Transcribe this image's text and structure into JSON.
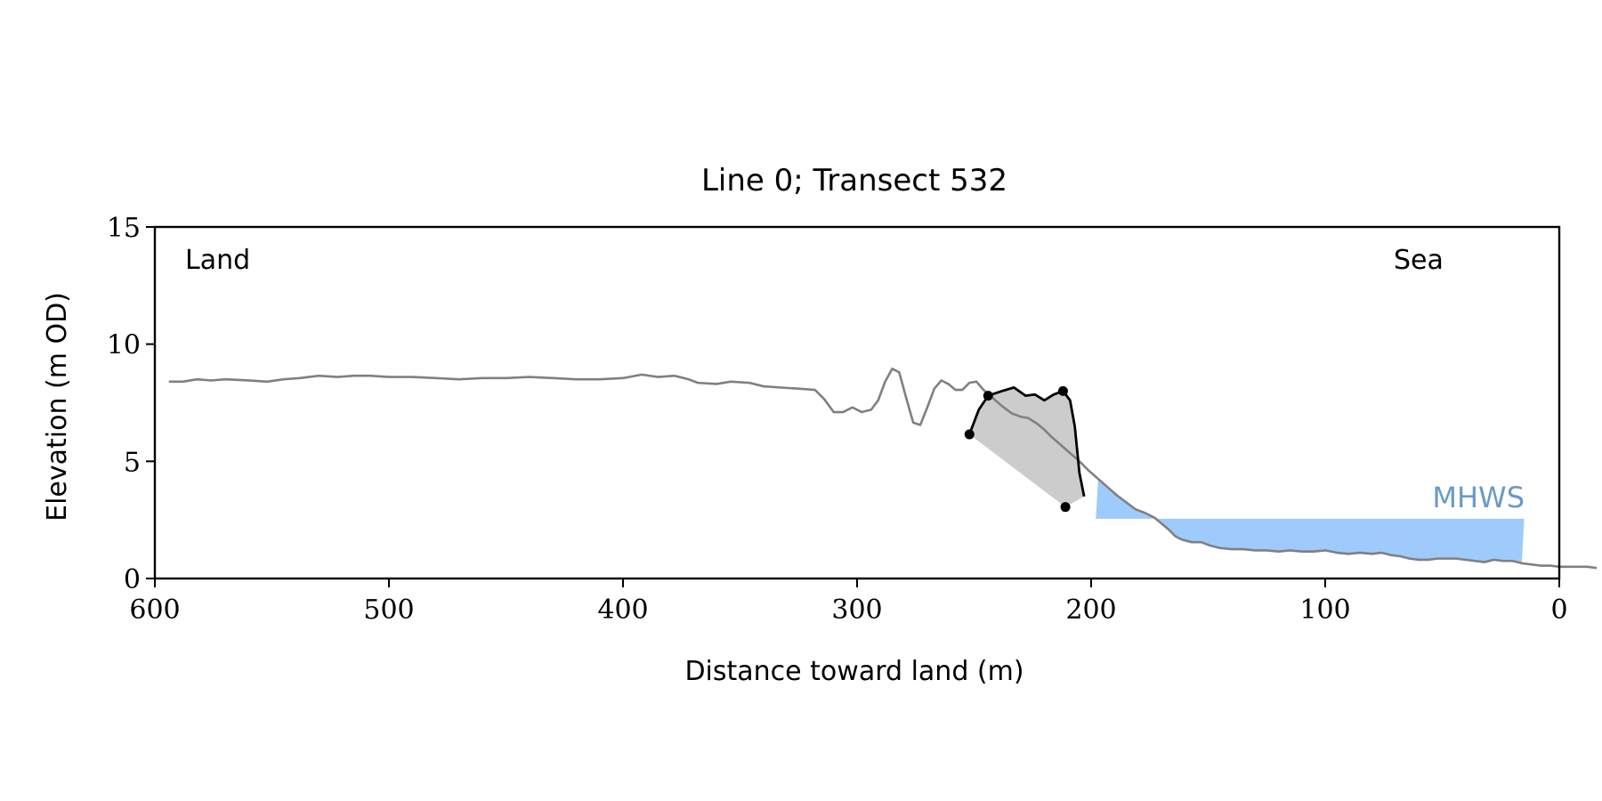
{
  "chart_data": {
    "type": "line",
    "title": "Line 0; Transect 532",
    "xlabel": "Distance toward land (m)",
    "ylabel": "Elevation (m OD)",
    "xlim": [
      600,
      0
    ],
    "ylim": [
      0,
      15
    ],
    "x_ticks": [
      600,
      500,
      400,
      300,
      200,
      100,
      0
    ],
    "y_ticks": [
      0,
      5,
      10,
      15
    ],
    "grid": false,
    "annotations": {
      "land_label": "Land",
      "sea_label": "Sea",
      "mhws_label": "MHWS"
    },
    "mhws": {
      "level": 2.55,
      "x_range": [
        198,
        15
      ]
    },
    "colors": {
      "profile": "#808080",
      "dune": "#000000",
      "dune_fill": "#cccccc",
      "water": "#9ecbfb",
      "mhws_text": "#6a9ac7"
    },
    "series": [
      {
        "values": [
          [
            594,
            8.4
          ],
          [
            588,
            8.4
          ],
          [
            582,
            8.5
          ],
          [
            576,
            8.45
          ],
          [
            570,
            8.5
          ],
          [
            560,
            8.45
          ],
          [
            552,
            8.4
          ],
          [
            545,
            8.5
          ],
          [
            538,
            8.55
          ],
          [
            530,
            8.65
          ],
          [
            522,
            8.6
          ],
          [
            515,
            8.65
          ],
          [
            508,
            8.65
          ],
          [
            500,
            8.6
          ],
          [
            490,
            8.6
          ],
          [
            480,
            8.55
          ],
          [
            470,
            8.5
          ],
          [
            460,
            8.55
          ],
          [
            450,
            8.55
          ],
          [
            440,
            8.6
          ],
          [
            430,
            8.55
          ],
          [
            420,
            8.5
          ],
          [
            410,
            8.5
          ],
          [
            400,
            8.55
          ],
          [
            392,
            8.7
          ],
          [
            385,
            8.6
          ],
          [
            378,
            8.65
          ],
          [
            372,
            8.5
          ],
          [
            368,
            8.35
          ],
          [
            360,
            8.3
          ],
          [
            354,
            8.4
          ],
          [
            346,
            8.35
          ],
          [
            340,
            8.2
          ],
          [
            333,
            8.15
          ],
          [
            325,
            8.1
          ],
          [
            318,
            8.05
          ],
          [
            314,
            7.65
          ],
          [
            310,
            7.1
          ],
          [
            306,
            7.1
          ],
          [
            302,
            7.3
          ],
          [
            298,
            7.1
          ],
          [
            294,
            7.2
          ],
          [
            291,
            7.6
          ],
          [
            288,
            8.4
          ],
          [
            285,
            8.95
          ],
          [
            282,
            8.8
          ],
          [
            279,
            7.7
          ],
          [
            276,
            6.65
          ],
          [
            273,
            6.55
          ],
          [
            270,
            7.3
          ],
          [
            267,
            8.1
          ],
          [
            264,
            8.45
          ],
          [
            261,
            8.3
          ],
          [
            258,
            8.05
          ],
          [
            255,
            8.05
          ],
          [
            252,
            8.35
          ],
          [
            249,
            8.4
          ],
          [
            246,
            8.05
          ],
          [
            242,
            7.7
          ],
          [
            238,
            7.35
          ],
          [
            234,
            7.05
          ],
          [
            230,
            6.9
          ],
          [
            227,
            6.85
          ],
          [
            223,
            6.6
          ],
          [
            220,
            6.35
          ],
          [
            217,
            6.05
          ],
          [
            213,
            5.7
          ],
          [
            209,
            5.35
          ],
          [
            205,
            5.0
          ],
          [
            201,
            4.6
          ],
          [
            197,
            4.25
          ],
          [
            193,
            3.9
          ],
          [
            189,
            3.55
          ],
          [
            185,
            3.25
          ],
          [
            181,
            2.95
          ],
          [
            177,
            2.8
          ],
          [
            173,
            2.6
          ],
          [
            170,
            2.35
          ],
          [
            167,
            2.1
          ],
          [
            164,
            1.8
          ],
          [
            161,
            1.65
          ],
          [
            157,
            1.55
          ],
          [
            153,
            1.55
          ],
          [
            149,
            1.4
          ],
          [
            145,
            1.3
          ],
          [
            140,
            1.25
          ],
          [
            135,
            1.25
          ],
          [
            130,
            1.2
          ],
          [
            125,
            1.2
          ],
          [
            120,
            1.15
          ],
          [
            115,
            1.2
          ],
          [
            110,
            1.15
          ],
          [
            105,
            1.15
          ],
          [
            100,
            1.2
          ],
          [
            95,
            1.1
          ],
          [
            90,
            1.05
          ],
          [
            85,
            1.1
          ],
          [
            80,
            1.05
          ],
          [
            76,
            1.1
          ],
          [
            72,
            1.0
          ],
          [
            68,
            0.95
          ],
          [
            64,
            0.85
          ],
          [
            60,
            0.8
          ],
          [
            56,
            0.8
          ],
          [
            52,
            0.85
          ],
          [
            48,
            0.85
          ],
          [
            44,
            0.85
          ],
          [
            40,
            0.8
          ],
          [
            36,
            0.75
          ],
          [
            32,
            0.7
          ],
          [
            28,
            0.8
          ],
          [
            24,
            0.75
          ],
          [
            20,
            0.75
          ],
          [
            16,
            0.65
          ],
          [
            12,
            0.6
          ],
          [
            8,
            0.55
          ],
          [
            4,
            0.55
          ],
          [
            0,
            0.5
          ],
          [
            -4,
            0.5
          ],
          [
            -8,
            0.5
          ],
          [
            -12,
            0.5
          ],
          [
            -16,
            0.45
          ]
        ]
      },
      {
        "values": [
          [
            252,
            6.15
          ],
          [
            248,
            7.2
          ],
          [
            244,
            7.8
          ],
          [
            238,
            8.0
          ],
          [
            233,
            8.15
          ],
          [
            228,
            7.8
          ],
          [
            224,
            7.85
          ],
          [
            220,
            7.6
          ],
          [
            216,
            7.85
          ],
          [
            212,
            8.0
          ],
          [
            209,
            7.6
          ],
          [
            207,
            6.5
          ],
          [
            205,
            4.5
          ],
          [
            203,
            3.5
          ],
          [
            211,
            3.05
          ]
        ]
      }
    ],
    "dune_markers": [
      [
        252,
        6.15
      ],
      [
        244,
        7.8
      ],
      [
        212,
        8.0
      ],
      [
        211,
        3.05
      ]
    ]
  }
}
